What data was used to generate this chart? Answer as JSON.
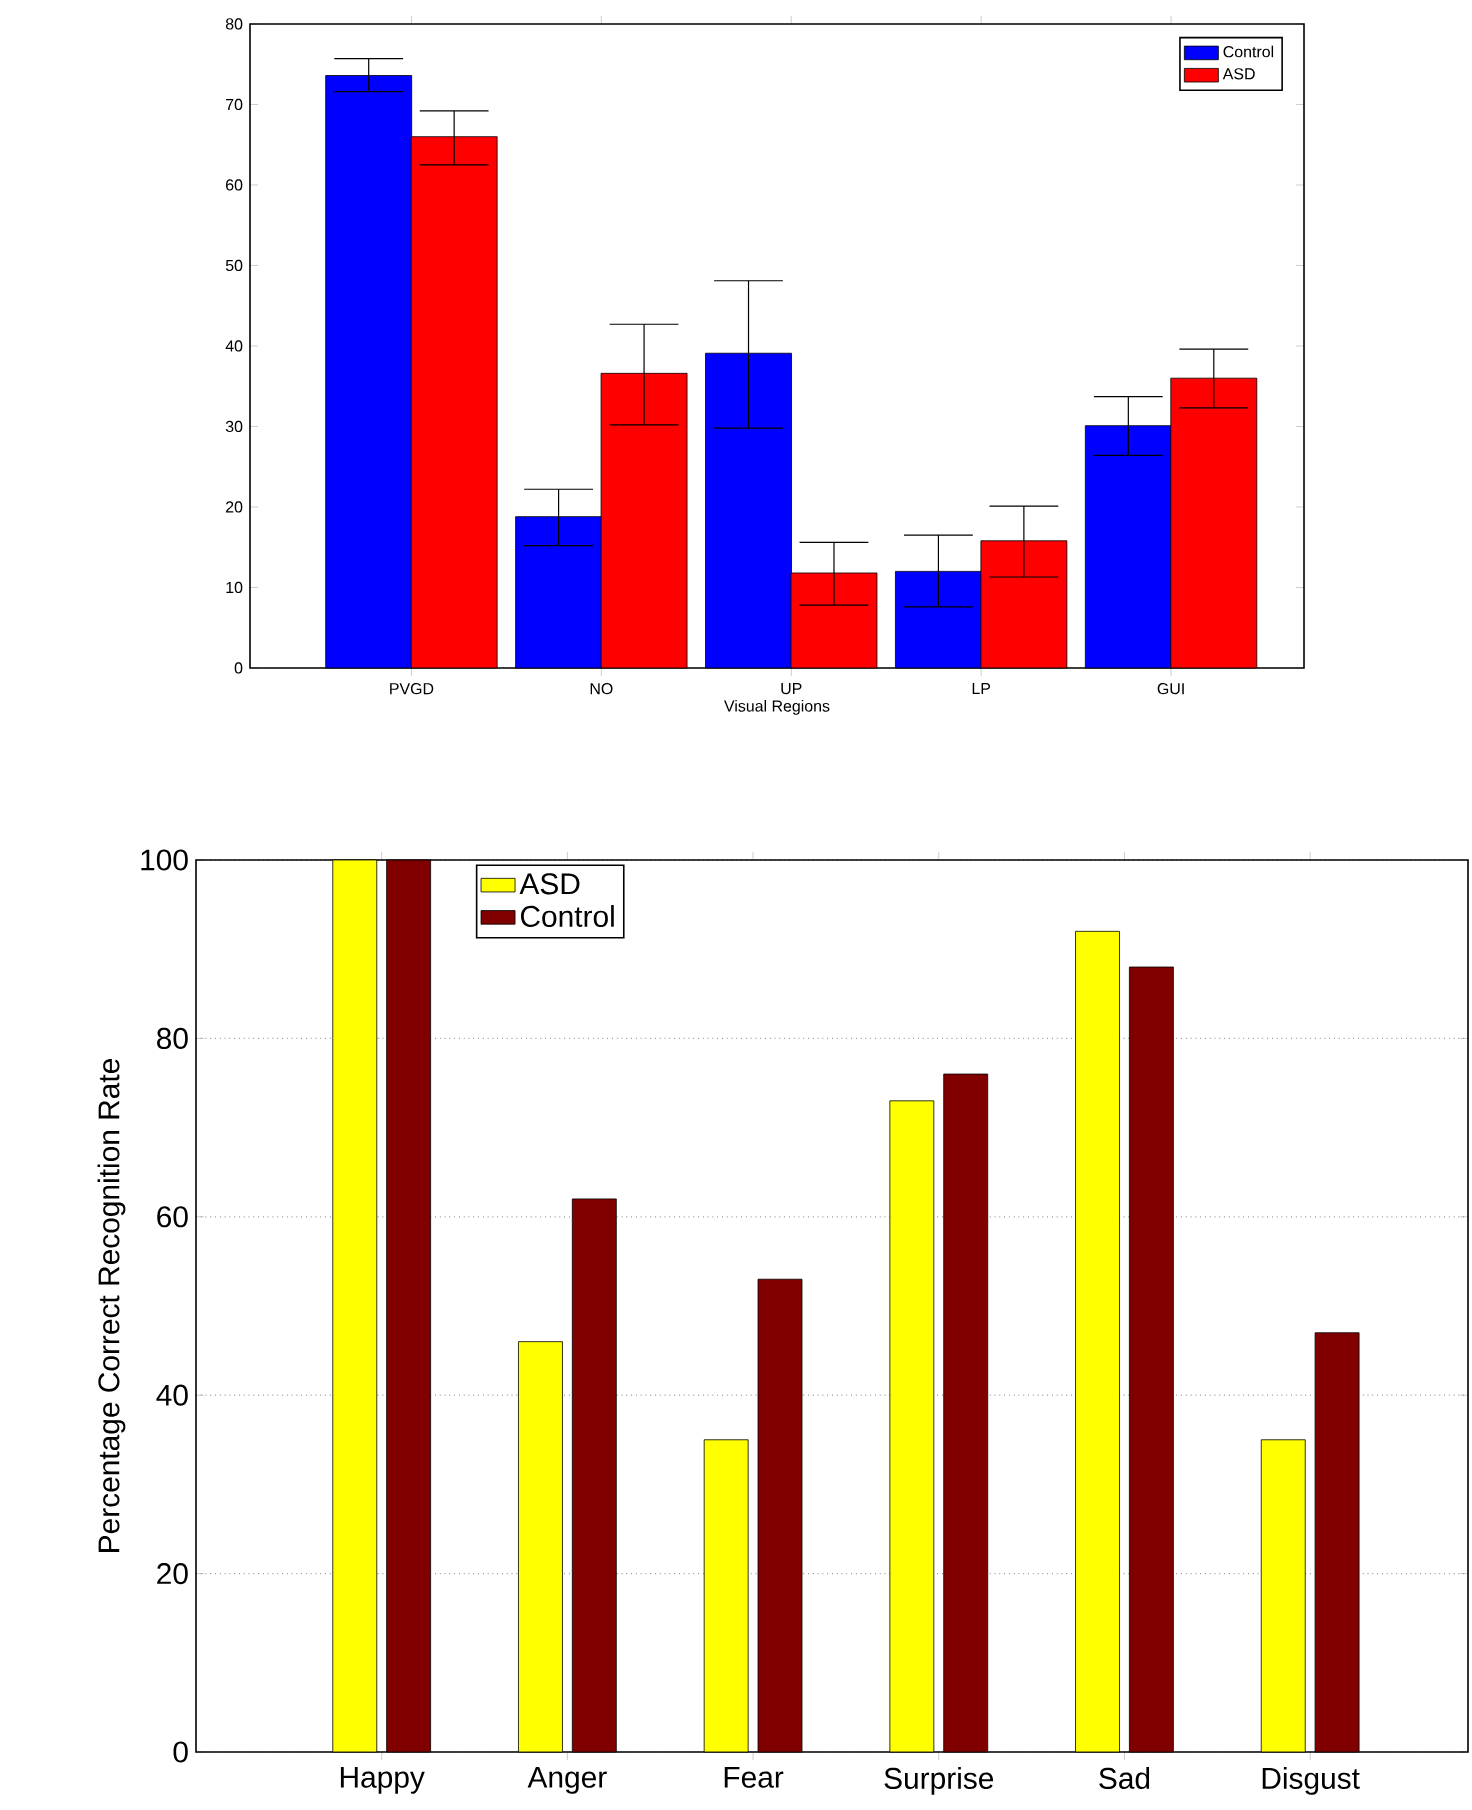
{
  "chart_data": [
    {
      "type": "bar",
      "xlabel": "Visual Regions",
      "categories": [
        "PVGD",
        "NO",
        "UP",
        "LP",
        "GUI"
      ],
      "ylim": [
        0,
        80
      ],
      "yticks": [
        0,
        10,
        20,
        30,
        40,
        50,
        60,
        70,
        80
      ],
      "legend": "top right",
      "grid": false,
      "series": [
        {
          "name": "Control",
          "color": "#0000ff",
          "values": [
            73.6,
            18.8,
            39.1,
            12.0,
            30.1
          ],
          "errors": [
            [
              71.6,
              75.7
            ],
            [
              15.2,
              22.2
            ],
            [
              29.8,
              48.1
            ],
            [
              7.6,
              16.5
            ],
            [
              26.4,
              33.7
            ]
          ]
        },
        {
          "name": "ASD",
          "color": "#ff0000",
          "values": [
            66.0,
            36.6,
            11.8,
            15.8,
            36.0
          ],
          "errors": [
            [
              62.5,
              69.2
            ],
            [
              30.2,
              42.7
            ],
            [
              7.8,
              15.6
            ],
            [
              11.3,
              20.1
            ],
            [
              32.3,
              39.6
            ]
          ]
        }
      ]
    },
    {
      "type": "bar",
      "ylabel": "Percentage Correct Recognition Rate",
      "categories": [
        "Happy",
        "Anger",
        "Fear",
        "Surprise",
        "Sad",
        "Disgust"
      ],
      "ylim": [
        0,
        100
      ],
      "yticks": [
        0,
        20,
        40,
        60,
        80,
        100
      ],
      "legend": "top left",
      "grid": "y",
      "series": [
        {
          "name": "ASD",
          "color": "#ffff00",
          "values": [
            100,
            46,
            35,
            73,
            92,
            35
          ]
        },
        {
          "name": "Control",
          "color": "#800000",
          "values": [
            100,
            62,
            53,
            76,
            88,
            47
          ]
        }
      ]
    }
  ]
}
